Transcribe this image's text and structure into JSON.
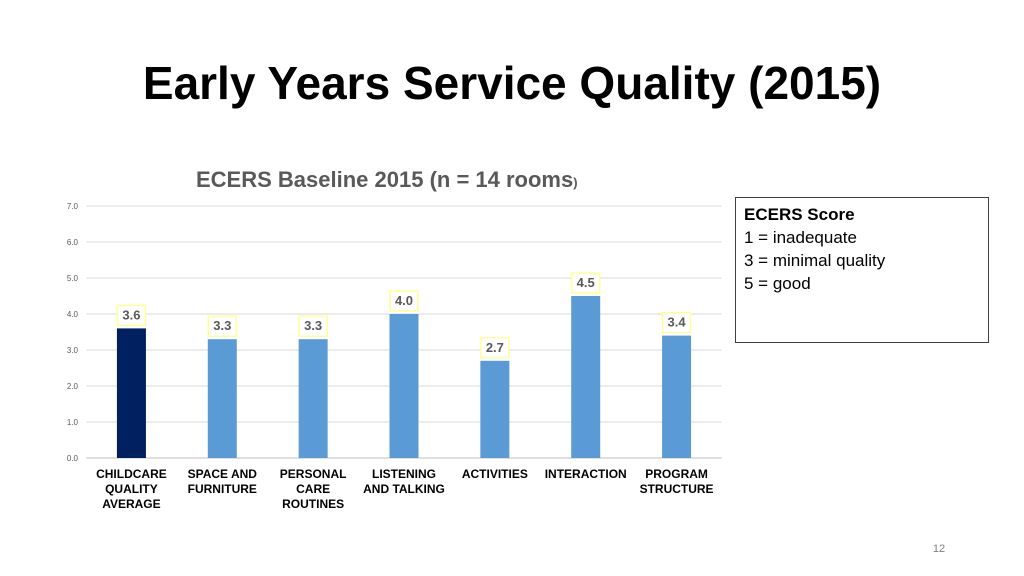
{
  "slide": {
    "title": "Early Years Service Quality (2015)",
    "page_number": "12"
  },
  "legend_box": {
    "heading": "ECERS Score",
    "lines": [
      "1 = inadequate",
      "3 = minimal quality",
      "5 = good"
    ]
  },
  "chart_data": {
    "type": "bar",
    "title_main": "ECERS Baseline 2015 (n = 14 rooms",
    "title_tail": ")",
    "categories": [
      [
        "CHILDCARE",
        "QUALITY",
        "AVERAGE"
      ],
      [
        "SPACE AND",
        "FURNITURE"
      ],
      [
        "PERSONAL",
        "CARE",
        "ROUTINES"
      ],
      [
        "LISTENING",
        "AND TALKING"
      ],
      [
        "ACTIVITIES"
      ],
      [
        "INTERACTION"
      ],
      [
        "PROGRAM",
        "STRUCTURE"
      ]
    ],
    "values": [
      3.6,
      3.3,
      3.3,
      4.0,
      2.7,
      4.5,
      3.4
    ],
    "data_labels": [
      "3.6",
      "3.3",
      "3.3",
      "4.0",
      "2.7",
      "4.5",
      "3.4"
    ],
    "bar_colors": [
      "#002060",
      "#5b9bd5",
      "#5b9bd5",
      "#5b9bd5",
      "#5b9bd5",
      "#5b9bd5",
      "#5b9bd5"
    ],
    "label_border_color": "#ffff99",
    "ylim": [
      0,
      7
    ],
    "yticks": [
      "0.0",
      "1.0",
      "2.0",
      "3.0",
      "4.0",
      "5.0",
      "6.0",
      "7.0"
    ],
    "grid": true
  }
}
